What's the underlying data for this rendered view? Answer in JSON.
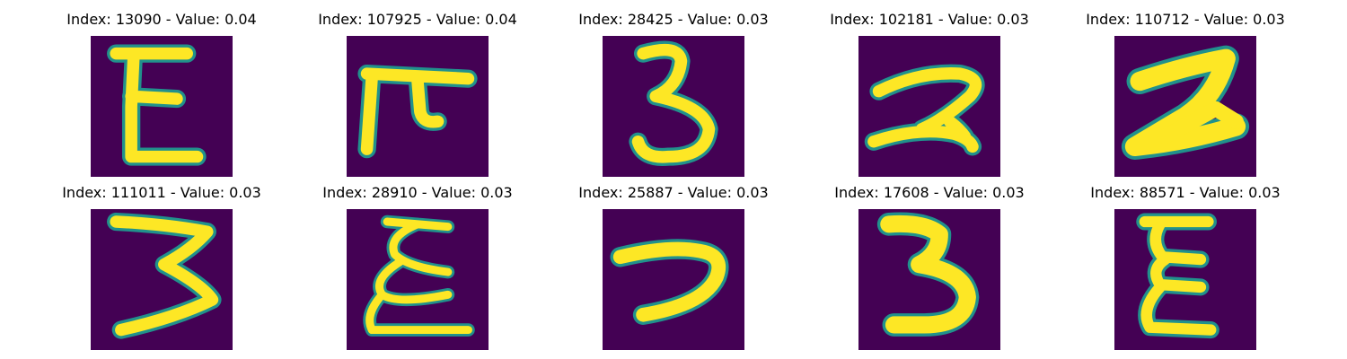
{
  "panels": [
    {
      "title": "Index: 13090 - Value: 0.04",
      "glyph": "E-like"
    },
    {
      "title": "Index: 107925 - Value: 0.04",
      "glyph": "pi-like"
    },
    {
      "title": "Index: 28425 - Value: 0.03",
      "glyph": "3"
    },
    {
      "title": "Index: 102181 - Value: 0.03",
      "glyph": "2"
    },
    {
      "title": "Index: 110712 - Value: 0.03",
      "glyph": "2-bold"
    },
    {
      "title": "Index: 111011 - Value: 0.03",
      "glyph": "3-wide"
    },
    {
      "title": "Index: 28910 - Value: 0.03",
      "glyph": "E-curly"
    },
    {
      "title": "Index: 25887 - Value: 0.03",
      "glyph": "7-like"
    },
    {
      "title": "Index: 17608 - Value: 0.03",
      "glyph": "3-bold"
    },
    {
      "title": "Index: 88571 - Value: 0.03",
      "glyph": "E-sigma"
    }
  ],
  "colors": {
    "background": "#440154",
    "stroke": "#fde725",
    "edge": "#21918c"
  }
}
